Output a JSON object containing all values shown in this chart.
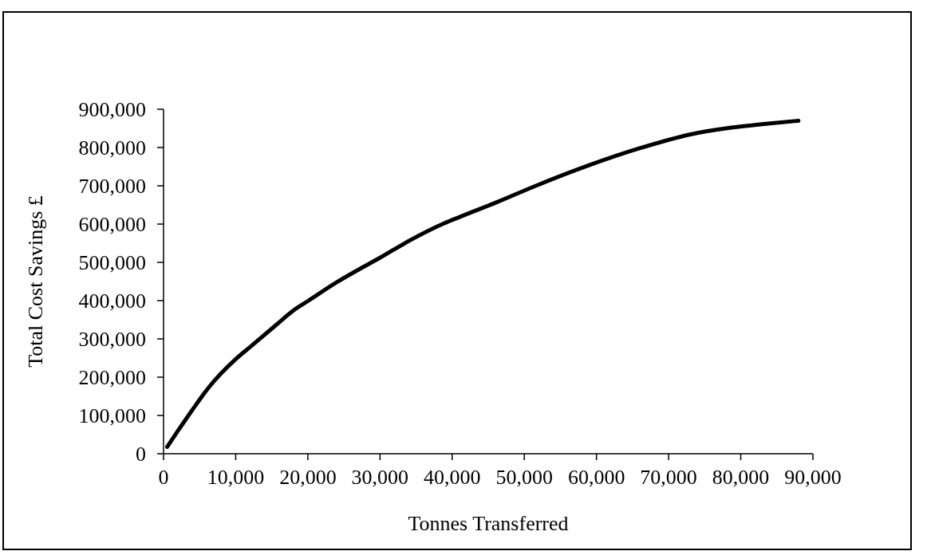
{
  "chart_data": {
    "type": "line",
    "xlabel": "Tonnes Transferred",
    "ylabel": "Total Cost Savings £",
    "x": [
      500,
      2000,
      3900,
      6300,
      10000,
      12000,
      15700,
      17900,
      20100,
      24100,
      27800,
      30000,
      34100,
      38900,
      41100,
      46300,
      51200,
      59600,
      65800,
      73200,
      78700,
      83500,
      88000
    ],
    "values": [
      18000,
      60000,
      112000,
      174000,
      247000,
      279000,
      338000,
      373000,
      400000,
      449000,
      489000,
      512000,
      557000,
      602000,
      619000,
      658000,
      697000,
      758000,
      797000,
      835000,
      852000,
      862000,
      870000
    ],
    "color": "#000000",
    "marker": "none",
    "line_style": "solid",
    "xlim": [
      0,
      90000
    ],
    "ylim": [
      0,
      900000
    ],
    "xticks": [
      0,
      {
        "value": 10000,
        "label": "10,000"
      },
      {
        "value": 20000,
        "label": "20,000"
      },
      {
        "value": 30000,
        "label": "30,000"
      },
      {
        "value": 40000,
        "label": "40,000"
      },
      {
        "value": 50000,
        "label": "50,000"
      },
      {
        "value": 60000,
        "label": "60,000"
      },
      {
        "value": 70000,
        "label": "70,000"
      },
      {
        "value": 80000,
        "label": "80,000"
      },
      {
        "value": 90000,
        "label": "90,000"
      }
    ],
    "yticks": [
      0,
      {
        "value": 100000,
        "label": "100,000"
      },
      {
        "value": 200000,
        "label": "200,000"
      },
      {
        "value": 300000,
        "label": "300,000"
      },
      {
        "value": 400000,
        "label": "400,000"
      },
      {
        "value": 500000,
        "label": "500,000"
      },
      {
        "value": 600000,
        "label": "600,000"
      },
      {
        "value": 700000,
        "label": "700,000"
      },
      {
        "value": 800000,
        "label": "800,000"
      },
      {
        "value": 900000,
        "label": "900,000"
      }
    ]
  }
}
